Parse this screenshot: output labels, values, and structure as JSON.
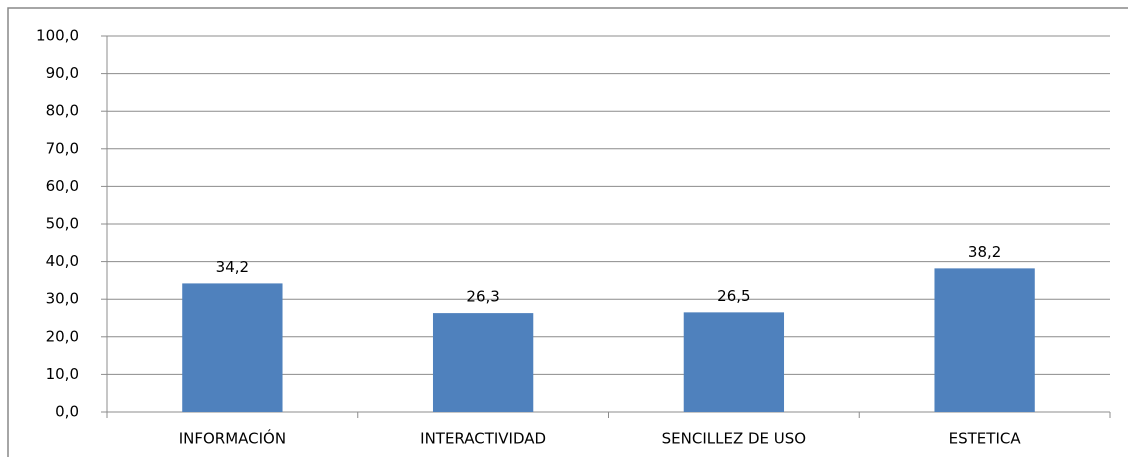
{
  "chart_data": {
    "type": "bar",
    "categories": [
      "INFORMACIÓN",
      "INTERACTIVIDAD",
      "SENCILLEZ DE USO",
      "ESTETICA"
    ],
    "values": [
      34.2,
      26.3,
      26.5,
      38.2
    ],
    "value_labels": [
      "34,2",
      "26,3",
      "26,5",
      "38,2"
    ],
    "color": "#4f81bd",
    "ylim": [
      0,
      100
    ],
    "yticks": [
      {
        "value": 0,
        "label": "0,0"
      },
      {
        "value": 10,
        "label": "10,0"
      },
      {
        "value": 20,
        "label": "20,0"
      },
      {
        "value": 30,
        "label": "30,0"
      },
      {
        "value": 40,
        "label": "40,0"
      },
      {
        "value": 50,
        "label": "50,0"
      },
      {
        "value": 60,
        "label": "60,0"
      },
      {
        "value": 70,
        "label": "70,0"
      },
      {
        "value": 80,
        "label": "80,0"
      },
      {
        "value": 90,
        "label": "90,0"
      },
      {
        "value": 100,
        "label": "100,0"
      }
    ],
    "grid": true
  }
}
